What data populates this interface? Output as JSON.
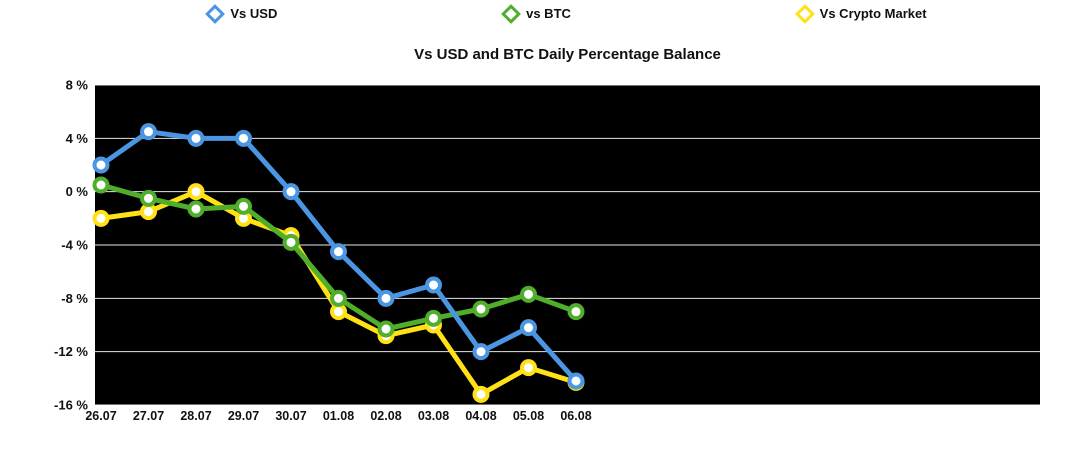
{
  "page": {
    "background": "#ffffff"
  },
  "chart_data": {
    "type": "line",
    "title": "Vs USD and BTC Daily Percentage Balance",
    "categories": [
      "26.07",
      "27.07",
      "28.07",
      "29.07",
      "30.07",
      "01.08",
      "02.08",
      "03.08",
      "04.08",
      "05.08",
      "06.08"
    ],
    "series": [
      {
        "name": "Vs USD",
        "color": "#4a96e3",
        "values": [
          2.0,
          4.5,
          4.0,
          4.0,
          0.0,
          -4.5,
          -8.0,
          -7.0,
          -12.0,
          -10.2,
          -14.2
        ]
      },
      {
        "name": "vs BTC",
        "color": "#4fae2b",
        "values": [
          0.5,
          -0.5,
          -1.3,
          -1.1,
          -3.8,
          -8.0,
          -10.3,
          -9.5,
          -8.8,
          -7.7,
          -9.0
        ]
      },
      {
        "name": "Vs Crypto Market",
        "color": "#ffe116",
        "values": [
          -2.0,
          -1.5,
          0.0,
          -2.0,
          -3.3,
          -9.0,
          -10.8,
          -10.0,
          -15.2,
          -13.2,
          -14.3
        ]
      }
    ],
    "yticks": [
      8,
      4,
      0,
      -4,
      -8,
      -12,
      -16
    ],
    "ytick_labels": [
      "8 %",
      "4 %",
      "0 %",
      "-4 %",
      "-8 %",
      "-12 %",
      "-16 %"
    ],
    "ylim": [
      -16,
      8
    ],
    "plot_background": "#000000",
    "grid": "horizontal",
    "grid_color": "#ffffff",
    "legend_position": "top"
  }
}
